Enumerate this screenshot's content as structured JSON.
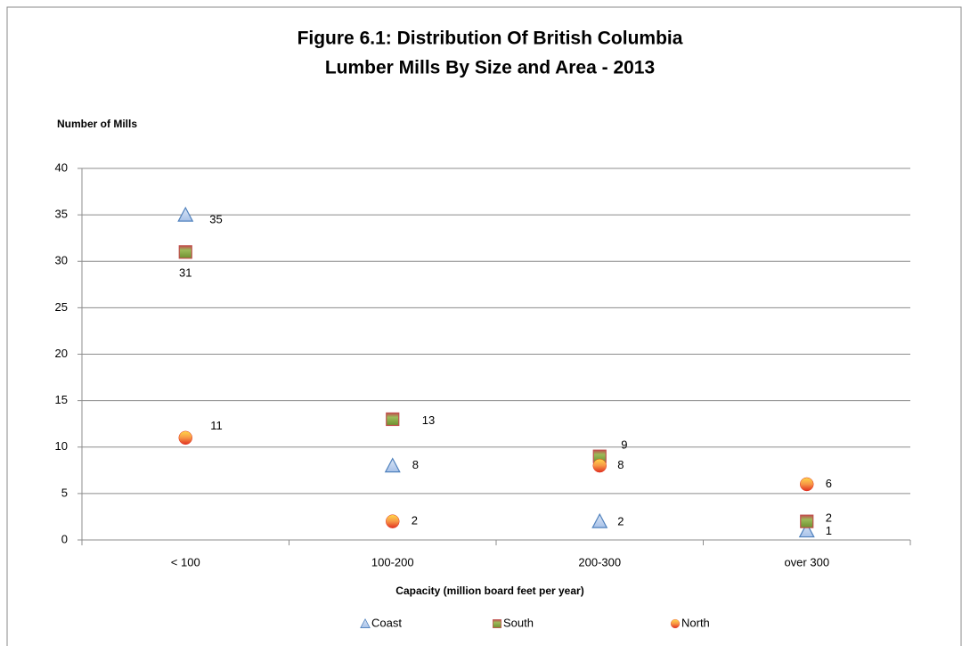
{
  "chart_data": {
    "type": "scatter",
    "title": [
      "Figure 6.1: Distribution Of British Columbia",
      "Lumber Mills By Size and Area - 2013"
    ],
    "ylabel": "Number of Mills",
    "xlabel": "Capacity (million board feet per year)",
    "categories": [
      "< 100",
      "100-200",
      "200-300",
      "over 300"
    ],
    "series": [
      {
        "name": "Coast",
        "color": "#a7c1e8",
        "edgecolor": "#4f81bd",
        "marker": "triangle",
        "values": [
          35,
          8,
          2,
          1
        ]
      },
      {
        "name": "South",
        "color": "#9bbb59",
        "edgecolor": "#c0504d",
        "marker": "square",
        "values": [
          31,
          13,
          9,
          2
        ]
      },
      {
        "name": "North",
        "color": "#f79646",
        "edgecolor": "#e03020",
        "marker": "circle",
        "values": [
          11,
          2,
          8,
          6
        ]
      }
    ],
    "ylim": [
      0,
      40
    ],
    "yticks": [
      0,
      5,
      10,
      15,
      20,
      25,
      30,
      35,
      40
    ],
    "grid": true,
    "legend": "bottom"
  }
}
